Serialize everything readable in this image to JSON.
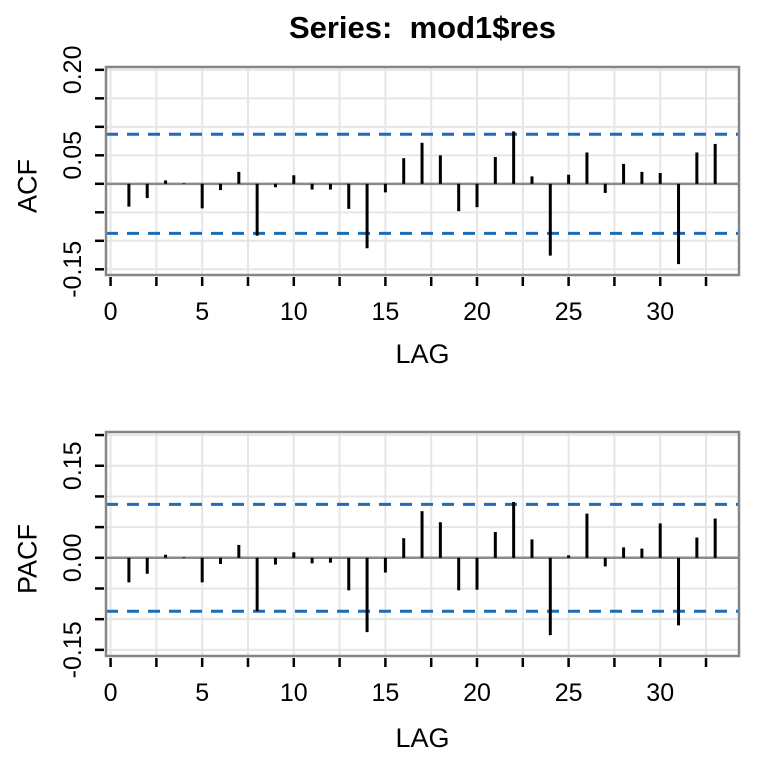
{
  "figure": {
    "title": "Series:  mod1$res",
    "colors": {
      "bar": "#000000",
      "conf_line": "#1c6db8",
      "frame": "#858585",
      "zero_line": "#8a8a8a",
      "grid": "#e6e6e6",
      "tick": "#000000",
      "text": "#000000",
      "background": "#ffffff"
    }
  },
  "chart_data": [
    {
      "type": "bar",
      "id": "acf",
      "title": "Series:  mod1$res",
      "ylabel": "ACF",
      "xlabel": "LAG",
      "lags": [
        1,
        2,
        3,
        4,
        5,
        6,
        7,
        8,
        9,
        10,
        11,
        12,
        13,
        14,
        15,
        16,
        17,
        18,
        19,
        20,
        21,
        22,
        23,
        24,
        25,
        26,
        27,
        28,
        29,
        30,
        31,
        32,
        33
      ],
      "values": [
        -0.04,
        -0.025,
        0.006,
        0.001,
        -0.043,
        -0.011,
        0.021,
        -0.091,
        -0.006,
        0.015,
        -0.01,
        -0.01,
        -0.044,
        -0.113,
        -0.015,
        0.045,
        0.072,
        0.05,
        -0.048,
        -0.041,
        0.047,
        0.092,
        0.013,
        -0.126,
        0.016,
        0.055,
        -0.016,
        0.035,
        0.021,
        0.019,
        -0.141,
        0.055,
        0.07
      ],
      "conf_bound": 0.087,
      "conf_style": "dashed",
      "ylim": [
        -0.16,
        0.205
      ],
      "xlim": [
        -0.25,
        34.3
      ],
      "grid": true,
      "y_ticks": [
        -0.15,
        -0.1,
        -0.05,
        0,
        0.05,
        0.1,
        0.15,
        0.2
      ],
      "y_tick_labels": [
        {
          "v": 0.2,
          "t": "0.20"
        },
        {
          "v": 0.05,
          "t": "0.05"
        },
        {
          "v": -0.15,
          "t": "-0.15"
        }
      ],
      "x_ticks": [
        0,
        2.5,
        5,
        7.5,
        10,
        12.5,
        15,
        17.5,
        20,
        22.5,
        25,
        27.5,
        30,
        32.5
      ],
      "x_tick_labels": [
        {
          "v": 0,
          "t": "0"
        },
        {
          "v": 5,
          "t": "5"
        },
        {
          "v": 10,
          "t": "10"
        },
        {
          "v": 15,
          "t": "15"
        },
        {
          "v": 20,
          "t": "20"
        },
        {
          "v": 25,
          "t": "25"
        },
        {
          "v": 30,
          "t": "30"
        }
      ]
    },
    {
      "type": "bar",
      "id": "pacf",
      "title": "",
      "ylabel": "PACF",
      "xlabel": "LAG",
      "lags": [
        1,
        2,
        3,
        4,
        5,
        6,
        7,
        8,
        9,
        10,
        11,
        12,
        13,
        14,
        15,
        16,
        17,
        18,
        19,
        20,
        21,
        22,
        23,
        24,
        25,
        26,
        27,
        28,
        29,
        30,
        31,
        32,
        33
      ],
      "values": [
        -0.04,
        -0.026,
        0.005,
        0.001,
        -0.04,
        -0.01,
        0.021,
        -0.087,
        -0.011,
        0.009,
        -0.009,
        -0.008,
        -0.053,
        -0.121,
        -0.024,
        0.032,
        0.076,
        0.058,
        -0.053,
        -0.052,
        0.042,
        0.091,
        0.03,
        -0.126,
        0.004,
        0.072,
        -0.014,
        0.017,
        0.015,
        0.056,
        -0.11,
        0.033,
        0.064
      ],
      "conf_bound": 0.087,
      "conf_style": "dashed",
      "ylim": [
        -0.16,
        0.205
      ],
      "xlim": [
        -0.25,
        34.3
      ],
      "grid": true,
      "y_ticks": [
        -0.15,
        -0.1,
        -0.05,
        0,
        0.05,
        0.1,
        0.15,
        0.2
      ],
      "y_tick_labels": [
        {
          "v": 0.15,
          "t": "0.15"
        },
        {
          "v": 0.0,
          "t": "0.00"
        },
        {
          "v": -0.15,
          "t": "-0.15"
        }
      ],
      "x_ticks": [
        0,
        2.5,
        5,
        7.5,
        10,
        12.5,
        15,
        17.5,
        20,
        22.5,
        25,
        27.5,
        30,
        32.5
      ],
      "x_tick_labels": [
        {
          "v": 0,
          "t": "0"
        },
        {
          "v": 5,
          "t": "5"
        },
        {
          "v": 10,
          "t": "10"
        },
        {
          "v": 15,
          "t": "15"
        },
        {
          "v": 20,
          "t": "20"
        },
        {
          "v": 25,
          "t": "25"
        },
        {
          "v": 30,
          "t": "30"
        }
      ]
    }
  ]
}
